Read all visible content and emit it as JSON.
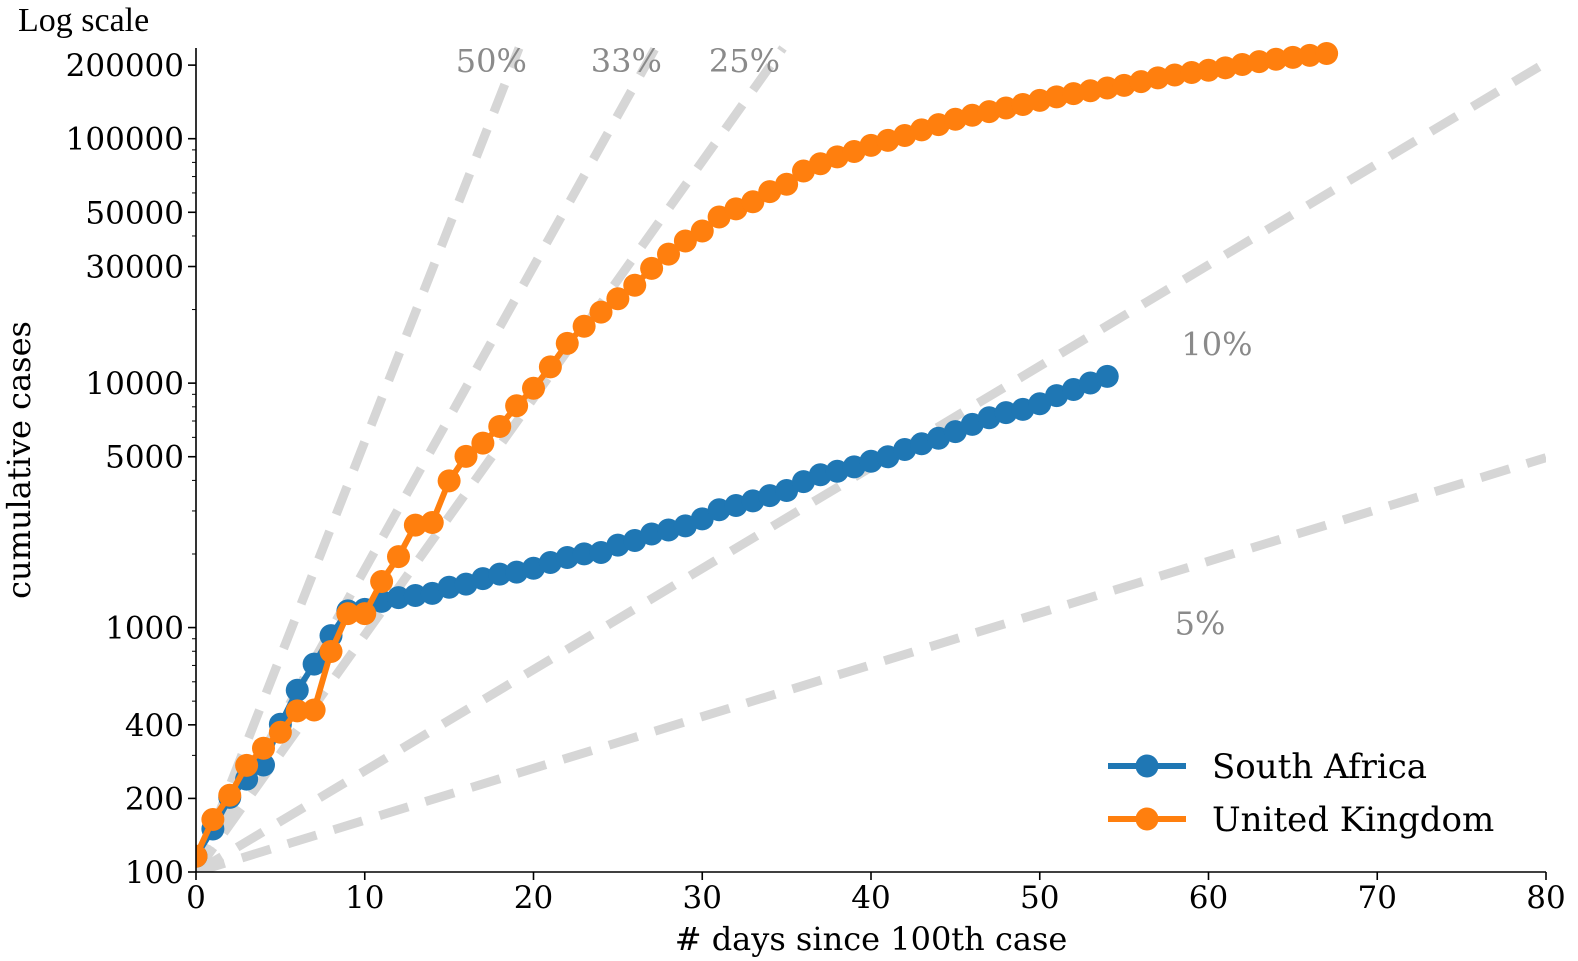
{
  "chart_data": {
    "type": "line",
    "title": "",
    "scale_note": "Log scale",
    "xlabel": "# days since 100th case",
    "ylabel": "cumulative cases",
    "xlim": [
      0,
      80
    ],
    "ylim": [
      100,
      235000
    ],
    "yscale": "log",
    "x_ticks": [
      "0",
      "10",
      "20",
      "30",
      "40",
      "50",
      "60",
      "70",
      "80"
    ],
    "y_ticks": [
      {
        "value": 100,
        "label": "100"
      },
      {
        "value": 200,
        "label": "200"
      },
      {
        "value": 400,
        "label": "400"
      },
      {
        "value": 1000,
        "label": "1000"
      },
      {
        "value": 5000,
        "label": "5000"
      },
      {
        "value": 10000,
        "label": "10000"
      },
      {
        "value": 30000,
        "label": "30000"
      },
      {
        "value": 50000,
        "label": "50000"
      },
      {
        "value": 100000,
        "label": "100000"
      },
      {
        "value": 200000,
        "label": "200000"
      }
    ],
    "grid": false,
    "legend_position": "bottom-right",
    "reference_lines": [
      {
        "label": "50%",
        "rate": 0.5,
        "label_at": [
          17.5,
          210000
        ]
      },
      {
        "label": "33%",
        "rate": 0.33,
        "label_at": [
          25.5,
          210000
        ]
      },
      {
        "label": "25%",
        "rate": 0.25,
        "label_at": [
          32.5,
          210000
        ]
      },
      {
        "label": "10%",
        "rate": 0.1,
        "label_at": [
          60.5,
          14500
        ]
      },
      {
        "label": "5%",
        "rate": 0.05,
        "label_at": [
          59.5,
          1050
        ]
      }
    ],
    "series": [
      {
        "name": "South Africa",
        "color": "#1f77b4",
        "x": [
          0,
          1,
          2,
          3,
          4,
          5,
          6,
          7,
          8,
          9,
          10,
          11,
          12,
          13,
          14,
          15,
          16,
          17,
          18,
          19,
          20,
          21,
          22,
          23,
          24,
          25,
          26,
          27,
          28,
          29,
          30,
          31,
          32,
          33,
          34,
          35,
          36,
          37,
          38,
          39,
          40,
          41,
          42,
          43,
          44,
          45,
          46,
          47,
          48,
          49,
          50,
          51,
          52,
          53,
          54
        ],
        "values": [
          116,
          150,
          202,
          240,
          274,
          402,
          554,
          709,
          927,
          1170,
          1187,
          1280,
          1326,
          1353,
          1380,
          1462,
          1505,
          1585,
          1655,
          1686,
          1749,
          1845,
          1934,
          2003,
          2028,
          2173,
          2272,
          2415,
          2506,
          2605,
          2783,
          3034,
          3158,
          3300,
          3465,
          3635,
          3953,
          4220,
          4361,
          4546,
          4793,
          4996,
          5350,
          5647,
          5951,
          6336,
          6783,
          7220,
          7572,
          7808,
          8232,
          8895,
          9420,
          10015,
          10652
        ]
      },
      {
        "name": "United Kingdom",
        "color": "#ff7f0e",
        "x": [
          0,
          1,
          2,
          3,
          4,
          5,
          6,
          7,
          8,
          9,
          10,
          11,
          12,
          13,
          14,
          15,
          16,
          17,
          18,
          19,
          20,
          21,
          22,
          23,
          24,
          25,
          26,
          27,
          28,
          29,
          30,
          31,
          32,
          33,
          34,
          35,
          36,
          37,
          38,
          39,
          40,
          41,
          42,
          43,
          44,
          45,
          46,
          47,
          48,
          49,
          50,
          51,
          52,
          53,
          54,
          55,
          56,
          57,
          58,
          59,
          60,
          61,
          62,
          63,
          64,
          65,
          66,
          67
        ],
        "values": [
          116,
          164,
          206,
          273,
          321,
          373,
          456,
          460,
          798,
          1140,
          1140,
          1543,
          1950,
          2626,
          2689,
          3983,
          5018,
          5683,
          6650,
          8077,
          9529,
          11658,
          14543,
          17089,
          19522,
          22141,
          25150,
          29474,
          33718,
          38168,
          41903,
          47806,
          51608,
          55242,
          60733,
          65077,
          73758,
          78991,
          84279,
          88621,
          93873,
          98476,
          103093,
          108692,
          114217,
          120067,
          124743,
          129044,
          133495,
          138078,
          143464,
          148377,
          152840,
          157149,
          161145,
          165221,
          171253,
          177454,
          182260,
          186599,
          190584,
          194990,
          201101,
          206715,
          211364,
          215260,
          219183,
          223060
        ]
      }
    ]
  }
}
